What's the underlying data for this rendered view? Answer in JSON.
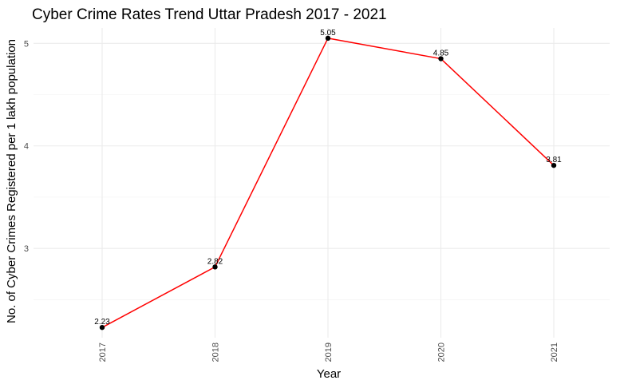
{
  "chart_data": {
    "type": "line",
    "title": "Cyber Crime Rates Trend Uttar Pradesh 2017 - 2021",
    "xlabel": "Year",
    "ylabel": "No. of Cyber Crimes Registered per 1 lakh population",
    "categories": [
      "2017",
      "2018",
      "2019",
      "2020",
      "2021"
    ],
    "values": [
      2.23,
      2.82,
      5.05,
      4.85,
      3.81
    ],
    "data_labels": [
      "2.23",
      "2.82",
      "5.05",
      "4.85",
      "3.81"
    ],
    "y_ticks": [
      3,
      4,
      5
    ],
    "y_tick_labels": [
      "3",
      "4",
      "5"
    ],
    "ylim": [
      2.13,
      5.15
    ],
    "line_color": "#ff0000",
    "point_color": "#000000",
    "grid": true,
    "legend": "none"
  }
}
